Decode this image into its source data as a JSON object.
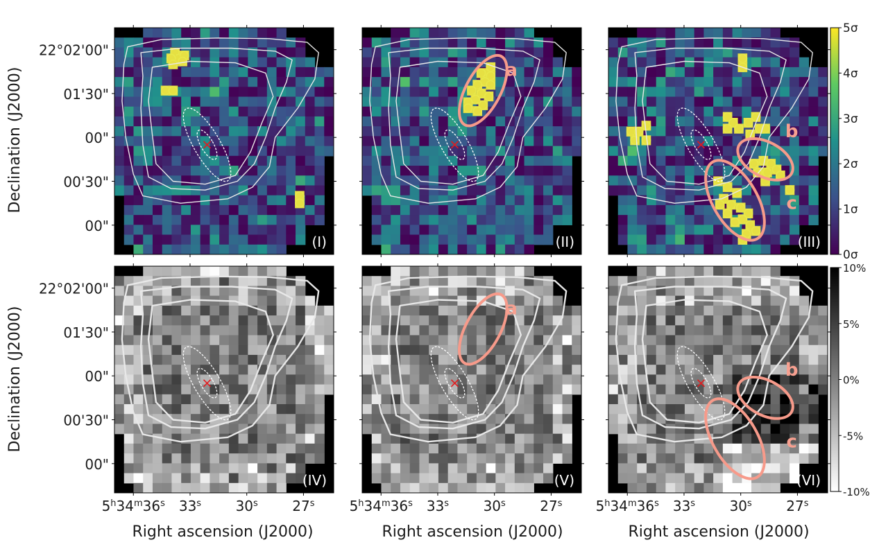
{
  "figure": {
    "ylabel": "Declination (J2000)",
    "xlabel": "Right ascension (J2000)",
    "dec_ticks": [
      {
        "pre": "22°02'00\"",
        "dec": 120
      },
      {
        "pre": "01'30\"",
        "dec": 90
      },
      {
        "pre": "00\"",
        "dec": 60
      },
      {
        "pre": "00'30\"",
        "dec": 30
      },
      {
        "pre": "00\"",
        "dec": 0
      }
    ],
    "ra_ticks": [
      {
        "pre": "5",
        "sup1": "h",
        "mid": "34",
        "sup2": "m",
        "post": "36",
        "sup3": "s",
        "ra": 36
      },
      {
        "pre": "33",
        "sup3": "s",
        "ra": 33
      },
      {
        "pre": "30",
        "sup3": "s",
        "ra": 30
      },
      {
        "pre": "27",
        "sup3": "s",
        "ra": 27
      }
    ]
  },
  "colorbars": [
    {
      "name": "significance",
      "colors": [
        "#440154",
        "#3b528b",
        "#21918c",
        "#5ec962",
        "#fde725"
      ],
      "ticks": [
        "0σ",
        "1σ",
        "2σ",
        "3σ",
        "4σ",
        "5σ"
      ],
      "range": [
        0,
        5
      ]
    },
    {
      "name": "fraction",
      "colors": [
        "#ffffff",
        "#000000"
      ],
      "ticks": [
        "10%",
        "5%",
        "0%",
        "-5%",
        "-10%"
      ],
      "range": [
        10,
        -10
      ]
    }
  ],
  "chart_data": [
    {
      "type": "heatmap",
      "panel": "(I)",
      "label": "(I)",
      "colormap": "viridis",
      "clim": [
        0,
        5
      ],
      "marked_pixels": [
        [
          33.8,
          118
        ],
        [
          33.6,
          114
        ],
        [
          34.0,
          114
        ],
        [
          33.3,
          116
        ],
        [
          33.4,
          112
        ],
        [
          33.9,
          110
        ],
        [
          34.3,
          92
        ],
        [
          33.9,
          92
        ],
        [
          27.2,
          20
        ],
        [
          27.2,
          15
        ]
      ]
    },
    {
      "type": "heatmap",
      "panel": "(II)",
      "label": "(II)",
      "colormap": "viridis",
      "clim": [
        0,
        5
      ],
      "marked_pixels": [
        [
          30.2,
          108
        ],
        [
          30.7,
          104
        ],
        [
          30.2,
          102
        ],
        [
          30.5,
          98
        ],
        [
          30.9,
          96
        ],
        [
          30.2,
          96
        ],
        [
          31.2,
          92
        ],
        [
          30.7,
          90
        ],
        [
          30.3,
          88
        ],
        [
          31.0,
          86
        ],
        [
          31.4,
          84
        ],
        [
          30.6,
          82
        ],
        [
          31.4,
          80
        ],
        [
          30.9,
          78
        ]
      ],
      "regions": [
        {
          "label": "a"
        }
      ]
    },
    {
      "type": "heatmap",
      "panel": "(III)",
      "label": "(III)",
      "colormap": "viridis",
      "clim": [
        0,
        5
      ],
      "marked_pixels": [
        [
          29.9,
          114
        ],
        [
          29.9,
          108
        ],
        [
          35.8,
          64
        ],
        [
          35.4,
          64
        ],
        [
          35.0,
          68
        ],
        [
          35.6,
          58
        ],
        [
          35.0,
          58
        ],
        [
          30.7,
          74
        ],
        [
          30.4,
          70
        ],
        [
          30.7,
          66
        ],
        [
          30.1,
          66
        ],
        [
          29.6,
          70
        ],
        [
          29.2,
          74
        ],
        [
          29.0,
          66
        ],
        [
          29.5,
          62
        ],
        [
          28.7,
          66
        ],
        [
          28.8,
          44
        ],
        [
          28.4,
          42
        ],
        [
          28.1,
          38
        ],
        [
          27.9,
          34
        ],
        [
          28.6,
          36
        ],
        [
          29.3,
          42
        ],
        [
          29.1,
          36
        ],
        [
          28.7,
          30
        ],
        [
          27.4,
          24
        ],
        [
          31.2,
          30
        ],
        [
          30.7,
          26
        ],
        [
          30.2,
          22
        ],
        [
          30.9,
          18
        ],
        [
          30.5,
          14
        ],
        [
          30.0,
          12
        ],
        [
          29.6,
          8
        ],
        [
          29.9,
          4
        ],
        [
          29.5,
          0
        ],
        [
          29.2,
          -4
        ],
        [
          30.7,
          8
        ],
        [
          30.3,
          2
        ],
        [
          29.7,
          -6
        ],
        [
          29.9,
          -10
        ],
        [
          31.1,
          14
        ]
      ],
      "regions": [
        {
          "label": "b"
        },
        {
          "label": "c"
        }
      ]
    },
    {
      "type": "heatmap",
      "panel": "(IV)",
      "label": "(IV)",
      "colormap": "gray_r",
      "clim": [
        -10,
        10
      ]
    },
    {
      "type": "heatmap",
      "panel": "(V)",
      "label": "(V)",
      "colormap": "gray_r",
      "clim": [
        -10,
        10
      ],
      "regions": [
        {
          "label": "a"
        }
      ]
    },
    {
      "type": "heatmap",
      "panel": "(VI)",
      "label": "(VI)",
      "colormap": "gray_r",
      "clim": [
        -10,
        10
      ],
      "regions": [
        {
          "label": "b"
        },
        {
          "label": "c"
        }
      ]
    }
  ]
}
